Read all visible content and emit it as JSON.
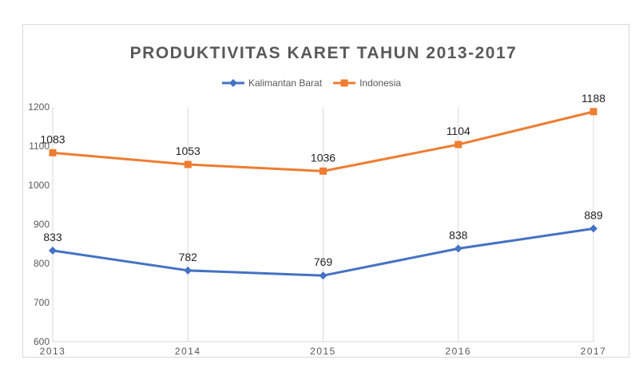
{
  "chart_data": {
    "type": "line",
    "title": "PRODUKTIVITAS KARET TAHUN 2013-2017",
    "xlabel": "",
    "ylabel": "",
    "x": [
      "2013",
      "2014",
      "2015",
      "2016",
      "2017"
    ],
    "ylim": [
      600,
      1200
    ],
    "yticks": [
      600,
      700,
      800,
      900,
      1000,
      1100,
      1200
    ],
    "grid": "vertical",
    "legend": "top-center",
    "series": [
      {
        "name": "Kalimantan Barat",
        "values": [
          833,
          782,
          769,
          838,
          889
        ],
        "color": "#4472c4",
        "marker": "diamond"
      },
      {
        "name": "Indonesia",
        "values": [
          1083,
          1053,
          1036,
          1104,
          1188
        ],
        "color": "#ed7d31",
        "marker": "square"
      }
    ]
  }
}
